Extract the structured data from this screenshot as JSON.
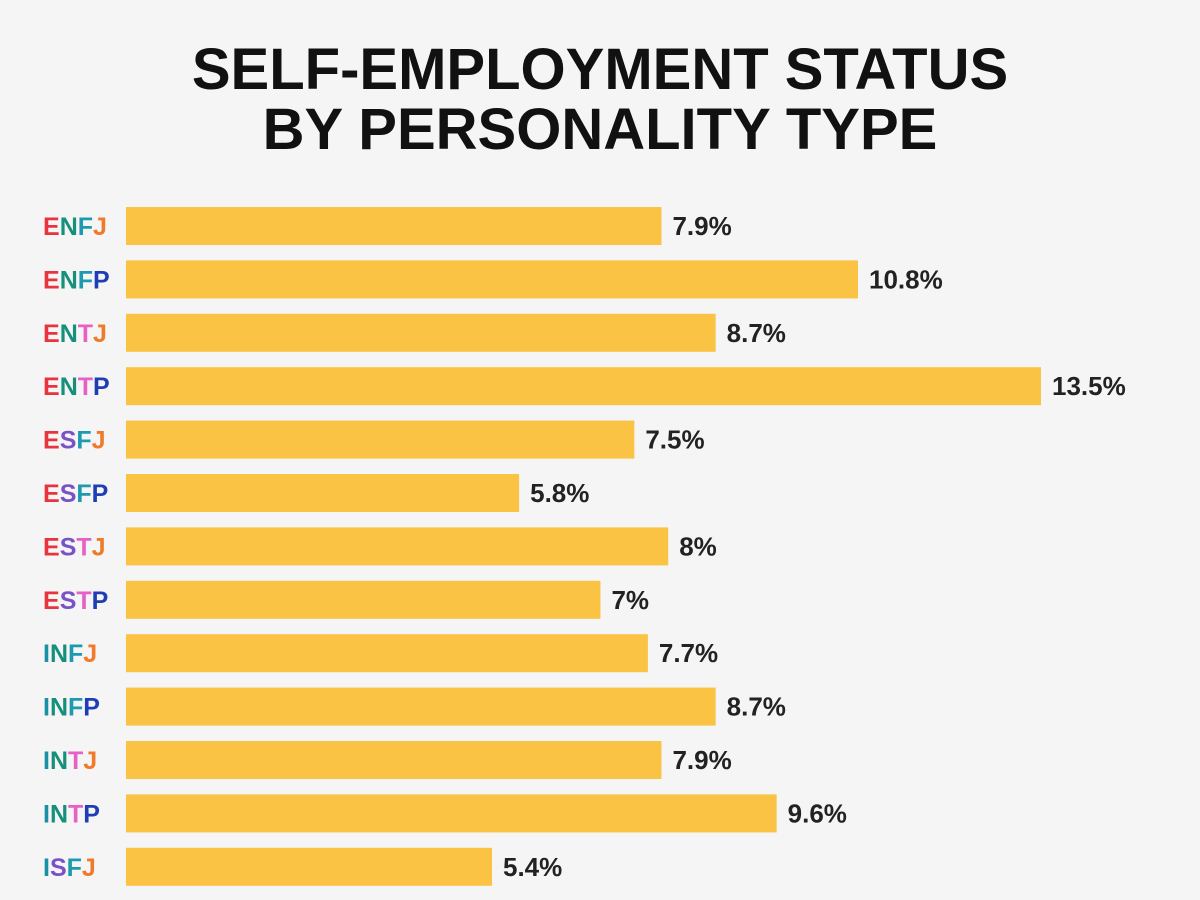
{
  "chart_data": {
    "type": "bar",
    "orientation": "horizontal",
    "title_lines": [
      "SELF-EMPLOYMENT STATUS",
      "BY PERSONALITY TYPE"
    ],
    "categories": [
      "ENFJ",
      "ENFP",
      "ENTJ",
      "ENTP",
      "ESFJ",
      "ESFP",
      "ESTJ",
      "ESTP",
      "INFJ",
      "INFP",
      "INTJ",
      "INTP",
      "ISFJ"
    ],
    "values": [
      7.9,
      10.8,
      8.7,
      13.5,
      7.5,
      5.8,
      8,
      7,
      7.7,
      8.7,
      7.9,
      9.6,
      5.4
    ],
    "value_labels": [
      "7.9%",
      "10.8%",
      "8.7%",
      "13.5%",
      "7.5%",
      "5.8%",
      "8%",
      "7%",
      "7.7%",
      "8.7%",
      "7.9%",
      "9.6%",
      "5.4%"
    ],
    "xlim": [
      0,
      13.5
    ],
    "grid": false,
    "bar_color": "#fbc343",
    "letter_colors": {
      "E": "#e8343f",
      "I": "#1a8fa5",
      "N": "#16907a",
      "S": "#7a52c7",
      "F": "#1e9ab0",
      "T": "#e85fc5",
      "J": "#f07a2a",
      "P": "#1f3db5"
    }
  }
}
